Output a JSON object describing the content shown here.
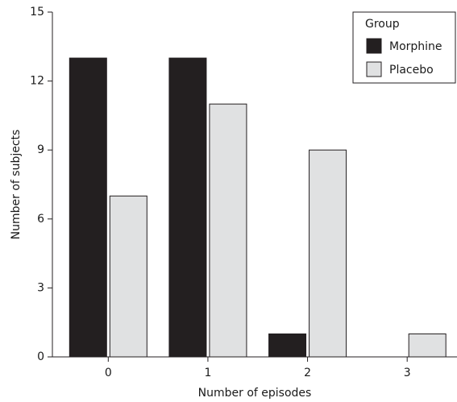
{
  "chart_data": {
    "type": "bar",
    "title": null,
    "x_label": "Number of episodes",
    "y_label": "Number of subjects",
    "categories": [
      "0",
      "1",
      "2",
      "3"
    ],
    "series": [
      {
        "name": "Morphine",
        "color": "#231f20",
        "values": [
          13,
          13,
          1,
          0
        ]
      },
      {
        "name": "Placebo",
        "color": "#e0e1e2",
        "values": [
          7,
          11,
          9,
          1
        ]
      }
    ],
    "ylim": [
      0,
      15
    ],
    "yticks": [
      0,
      3,
      6,
      9,
      12,
      15
    ],
    "legend_title": "Group",
    "legend_position": "upper right"
  }
}
